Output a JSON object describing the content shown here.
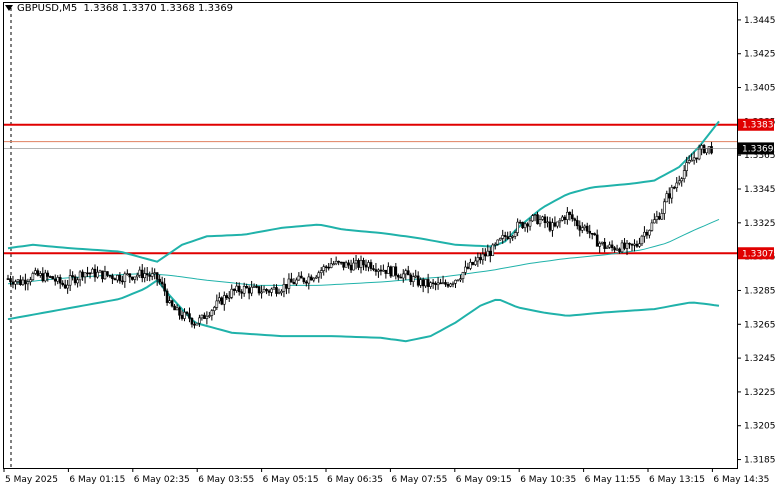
{
  "header": {
    "symbol": "GBPUSD,M5",
    "ohlc": "1.3368 1.3370 1.3368 1.3369"
  },
  "colors": {
    "background": "#ffffff",
    "band": "#20b2aa",
    "hline": "#e00000",
    "hline_thin": "#e08060",
    "candle": "#000000",
    "price_label_bg": "#000000",
    "level_label_bg": "#e00000"
  },
  "chart_data": {
    "type": "candlestick",
    "y_axis": {
      "min": 1.318,
      "max": 1.3455,
      "ticks": [
        "1.3185",
        "1.3205",
        "1.3225",
        "1.3245",
        "1.3265",
        "1.3285",
        "1.3305",
        "1.3325",
        "1.3345",
        "1.3365",
        "1.3385",
        "1.3405",
        "1.3425",
        "1.3445"
      ],
      "position": "right"
    },
    "x_axis": {
      "labels": [
        "5 May 2025",
        "6 May 01:15",
        "6 May 02:35",
        "6 May 03:55",
        "6 May 05:15",
        "6 May 06:35",
        "6 May 07:55",
        "6 May 09:15",
        "6 May 10:35",
        "6 May 11:55",
        "6 May 13:15",
        "6 May 14:35"
      ]
    },
    "horizontal_levels": [
      {
        "value": 1.3383,
        "label": "1.3383",
        "style": "thick"
      },
      {
        "value": 1.3307,
        "label": "1.3307",
        "style": "thick"
      },
      {
        "value": 1.3373,
        "label": "1.3373",
        "style": "thin"
      }
    ],
    "current_price": {
      "value": 1.3369,
      "label": "1.3369"
    },
    "close_path": [
      [
        0,
        1.3292
      ],
      [
        5,
        1.329
      ],
      [
        10,
        1.3294
      ],
      [
        15,
        1.3293
      ],
      [
        18,
        1.3292
      ],
      [
        20,
        1.329
      ],
      [
        23,
        1.3288
      ],
      [
        25,
        1.3291
      ],
      [
        28,
        1.3293
      ],
      [
        30,
        1.3296
      ],
      [
        35,
        1.3295
      ],
      [
        40,
        1.3294
      ],
      [
        45,
        1.3293
      ],
      [
        50,
        1.3294
      ],
      [
        55,
        1.3295
      ],
      [
        60,
        1.3292
      ],
      [
        63,
        1.3285
      ],
      [
        65,
        1.3276
      ],
      [
        68,
        1.3272
      ],
      [
        70,
        1.327
      ],
      [
        73,
        1.3269
      ],
      [
        75,
        1.3266
      ],
      [
        78,
        1.3268
      ],
      [
        80,
        1.3272
      ],
      [
        83,
        1.3275
      ],
      [
        85,
        1.3278
      ],
      [
        88,
        1.3282
      ],
      [
        90,
        1.3284
      ],
      [
        95,
        1.3286
      ],
      [
        100,
        1.3285
      ],
      [
        105,
        1.3285
      ],
      [
        110,
        1.3287
      ],
      [
        115,
        1.329
      ],
      [
        120,
        1.3292
      ],
      [
        125,
        1.3296
      ],
      [
        130,
        1.3301
      ],
      [
        135,
        1.33
      ],
      [
        140,
        1.33
      ],
      [
        145,
        1.3301
      ],
      [
        150,
        1.3298
      ],
      [
        155,
        1.3296
      ],
      [
        160,
        1.3294
      ],
      [
        165,
        1.329
      ],
      [
        170,
        1.3288
      ],
      [
        175,
        1.3288
      ],
      [
        180,
        1.3292
      ],
      [
        185,
        1.3298
      ],
      [
        190,
        1.3304
      ],
      [
        195,
        1.3309
      ],
      [
        198,
        1.3314
      ],
      [
        200,
        1.3317
      ],
      [
        203,
        1.332
      ],
      [
        205,
        1.3323
      ],
      [
        208,
        1.3325
      ],
      [
        210,
        1.3327
      ],
      [
        213,
        1.3327
      ],
      [
        215,
        1.3326
      ],
      [
        218,
        1.3323
      ],
      [
        220,
        1.3322
      ],
      [
        223,
        1.3328
      ],
      [
        225,
        1.333
      ],
      [
        228,
        1.3326
      ],
      [
        230,
        1.3323
      ],
      [
        233,
        1.3322
      ],
      [
        235,
        1.3316
      ],
      [
        238,
        1.3313
      ],
      [
        240,
        1.3311
      ],
      [
        243,
        1.331
      ],
      [
        245,
        1.3311
      ],
      [
        248,
        1.331
      ],
      [
        250,
        1.331
      ],
      [
        253,
        1.3312
      ],
      [
        255,
        1.3318
      ],
      [
        258,
        1.3322
      ],
      [
        260,
        1.3326
      ],
      [
        263,
        1.3332
      ],
      [
        265,
        1.334
      ],
      [
        268,
        1.3346
      ],
      [
        270,
        1.3352
      ],
      [
        273,
        1.3358
      ],
      [
        275,
        1.3362
      ],
      [
        278,
        1.3367
      ],
      [
        280,
        1.3369
      ],
      [
        283,
        1.3369
      ]
    ],
    "upper_band": [
      [
        0,
        1.331
      ],
      [
        10,
        1.3312
      ],
      [
        25,
        1.331
      ],
      [
        45,
        1.3308
      ],
      [
        55,
        1.3304
      ],
      [
        60,
        1.3302
      ],
      [
        65,
        1.3307
      ],
      [
        70,
        1.3312
      ],
      [
        80,
        1.3317
      ],
      [
        95,
        1.3318
      ],
      [
        110,
        1.3322
      ],
      [
        125,
        1.3324
      ],
      [
        135,
        1.3321
      ],
      [
        150,
        1.3319
      ],
      [
        165,
        1.3316
      ],
      [
        180,
        1.3312
      ],
      [
        195,
        1.3311
      ],
      [
        200,
        1.3314
      ],
      [
        205,
        1.3322
      ],
      [
        215,
        1.3334
      ],
      [
        225,
        1.3342
      ],
      [
        235,
        1.3346
      ],
      [
        250,
        1.3348
      ],
      [
        260,
        1.335
      ],
      [
        270,
        1.3358
      ],
      [
        278,
        1.337
      ],
      [
        286,
        1.3385
      ]
    ],
    "middle_band": [
      [
        0,
        1.3289
      ],
      [
        20,
        1.3292
      ],
      [
        40,
        1.3294
      ],
      [
        55,
        1.3295
      ],
      [
        65,
        1.3294
      ],
      [
        80,
        1.3291
      ],
      [
        100,
        1.3288
      ],
      [
        125,
        1.3288
      ],
      [
        150,
        1.329
      ],
      [
        175,
        1.3293
      ],
      [
        195,
        1.3297
      ],
      [
        210,
        1.3301
      ],
      [
        225,
        1.3304
      ],
      [
        240,
        1.3306
      ],
      [
        255,
        1.3309
      ],
      [
        265,
        1.3313
      ],
      [
        275,
        1.332
      ],
      [
        286,
        1.3327
      ]
    ],
    "lower_band": [
      [
        0,
        1.3268
      ],
      [
        15,
        1.3272
      ],
      [
        30,
        1.3276
      ],
      [
        45,
        1.328
      ],
      [
        55,
        1.3286
      ],
      [
        60,
        1.3291
      ],
      [
        65,
        1.3282
      ],
      [
        75,
        1.3266
      ],
      [
        90,
        1.326
      ],
      [
        110,
        1.3258
      ],
      [
        130,
        1.3258
      ],
      [
        150,
        1.3257
      ],
      [
        160,
        1.3255
      ],
      [
        170,
        1.3258
      ],
      [
        180,
        1.3266
      ],
      [
        190,
        1.3276
      ],
      [
        197,
        1.328
      ],
      [
        205,
        1.3275
      ],
      [
        215,
        1.3272
      ],
      [
        225,
        1.327
      ],
      [
        240,
        1.3272
      ],
      [
        260,
        1.3274
      ],
      [
        275,
        1.3278
      ],
      [
        286,
        1.3276
      ]
    ]
  }
}
